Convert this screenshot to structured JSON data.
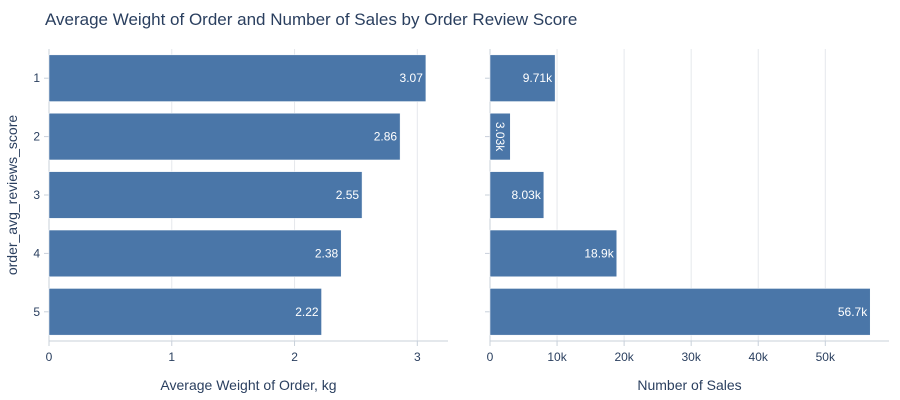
{
  "chart_data": {
    "title": "Average Weight of Order and Number of Sales by Order Review Score",
    "ylabel": "order_avg_reviews_score",
    "categories": [
      "1",
      "2",
      "3",
      "4",
      "5"
    ],
    "bar_color": "#4a76a8",
    "grid_color": "#e5e8ec",
    "panels": [
      {
        "type": "bar",
        "orientation": "horizontal",
        "xlabel": "Average Weight of Order, kg",
        "xlim": [
          0,
          3.25
        ],
        "xticks": [
          0,
          1,
          2,
          3
        ],
        "xtick_labels": [
          "0",
          "1",
          "2",
          "3"
        ],
        "values": [
          3.07,
          2.86,
          2.55,
          2.38,
          2.22
        ],
        "data_labels": [
          "3.07",
          "2.86",
          "2.55",
          "2.38",
          "2.22"
        ]
      },
      {
        "type": "bar",
        "orientation": "horizontal",
        "xlabel": "Number of Sales",
        "xlim": [
          0,
          59500
        ],
        "xticks": [
          0,
          10000,
          20000,
          30000,
          40000,
          50000
        ],
        "xtick_labels": [
          "0",
          "10k",
          "20k",
          "30k",
          "40k",
          "50k"
        ],
        "values": [
          9710,
          3030,
          8030,
          18900,
          56700
        ],
        "data_labels": [
          "9.71k",
          "3.03k",
          "8.03k",
          "18.9k",
          "56.7k"
        ]
      }
    ]
  }
}
